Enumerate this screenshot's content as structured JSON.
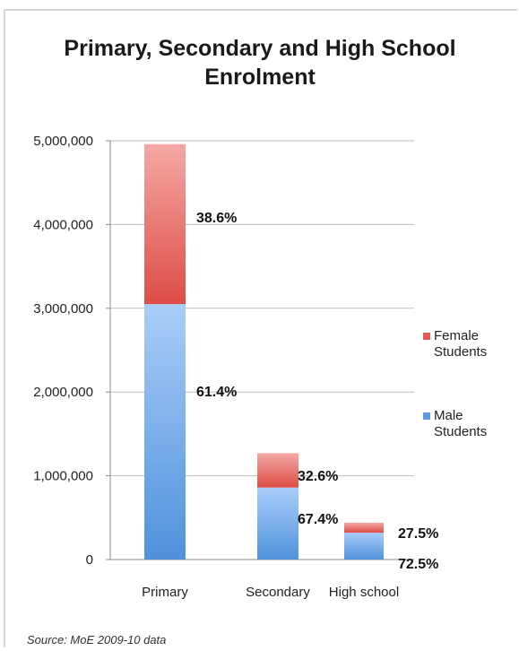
{
  "chart_data": {
    "type": "bar",
    "stacked": true,
    "title": "Primary, Secondary and High School Enrolment",
    "categories": [
      "Primary",
      "Secondary",
      "High school"
    ],
    "series": [
      {
        "name": "Male Students",
        "color": "#5b9be0",
        "values": [
          3050000,
          860000,
          320000
        ],
        "labels": [
          "61.4%",
          "67.4%",
          "72.5%"
        ]
      },
      {
        "name": "Female Students",
        "color": "#e05a52",
        "values": [
          1910000,
          410000,
          120000
        ],
        "labels": [
          "38.6%",
          "32.6%",
          "27.5%"
        ]
      }
    ],
    "y_ticks": [
      "0",
      "1,000,000",
      "2,000,000",
      "3,000,000",
      "4,000,000",
      "5,000,000"
    ],
    "ylim": [
      0,
      5000000
    ],
    "grid": true,
    "legend_position": "right"
  },
  "source": "Source: MoE 2009-10 data"
}
